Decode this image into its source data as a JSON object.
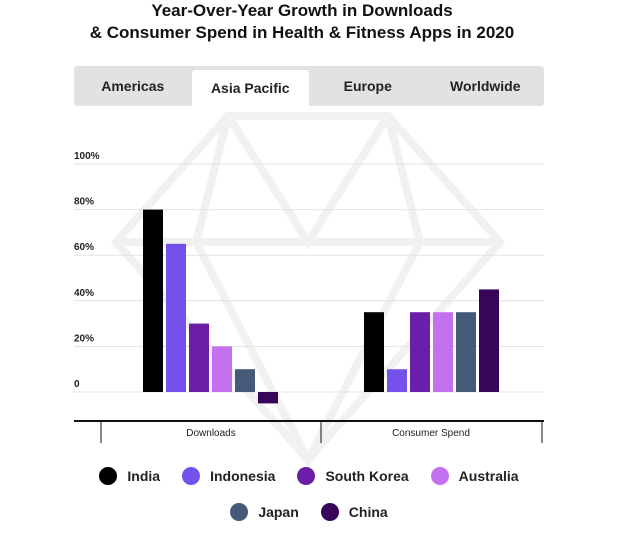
{
  "page": {
    "title_line1": "Year-Over-Year Growth in Downloads",
    "title_line2": "& Consumer Spend in Health & Fitness Apps in 2020"
  },
  "tabs": [
    {
      "label": "Americas",
      "active": false
    },
    {
      "label": "Asia Pacific",
      "active": true
    },
    {
      "label": "Europe",
      "active": false
    },
    {
      "label": "Worldwide",
      "active": false
    }
  ],
  "colors": {
    "India": "#000000",
    "Indonesia": "#7451eb",
    "South Korea": "#6b1fa8",
    "Australia": "#c471f0",
    "Japan": "#445a78",
    "China": "#380659"
  },
  "chart_data": {
    "type": "bar",
    "title": "Year-Over-Year Growth in Downloads & Consumer Spend in Health & Fitness Apps in 2020",
    "categories": [
      "Downloads",
      "Consumer Spend"
    ],
    "yticks": [
      "100%",
      "80%",
      "60%",
      "40%",
      "20%",
      "0"
    ],
    "ytick_values": [
      100,
      80,
      60,
      40,
      20,
      0
    ],
    "ylim": [
      -5,
      100
    ],
    "series": [
      {
        "name": "India",
        "values": [
          80,
          35
        ]
      },
      {
        "name": "Indonesia",
        "values": [
          65,
          10
        ]
      },
      {
        "name": "South Korea",
        "values": [
          30,
          35
        ]
      },
      {
        "name": "Australia",
        "values": [
          20,
          35
        ]
      },
      {
        "name": "Japan",
        "values": [
          10,
          35
        ]
      },
      {
        "name": "China",
        "values": [
          -5,
          45
        ]
      }
    ],
    "legend": [
      "India",
      "Indonesia",
      "South Korea",
      "Australia",
      "Japan",
      "China"
    ]
  }
}
